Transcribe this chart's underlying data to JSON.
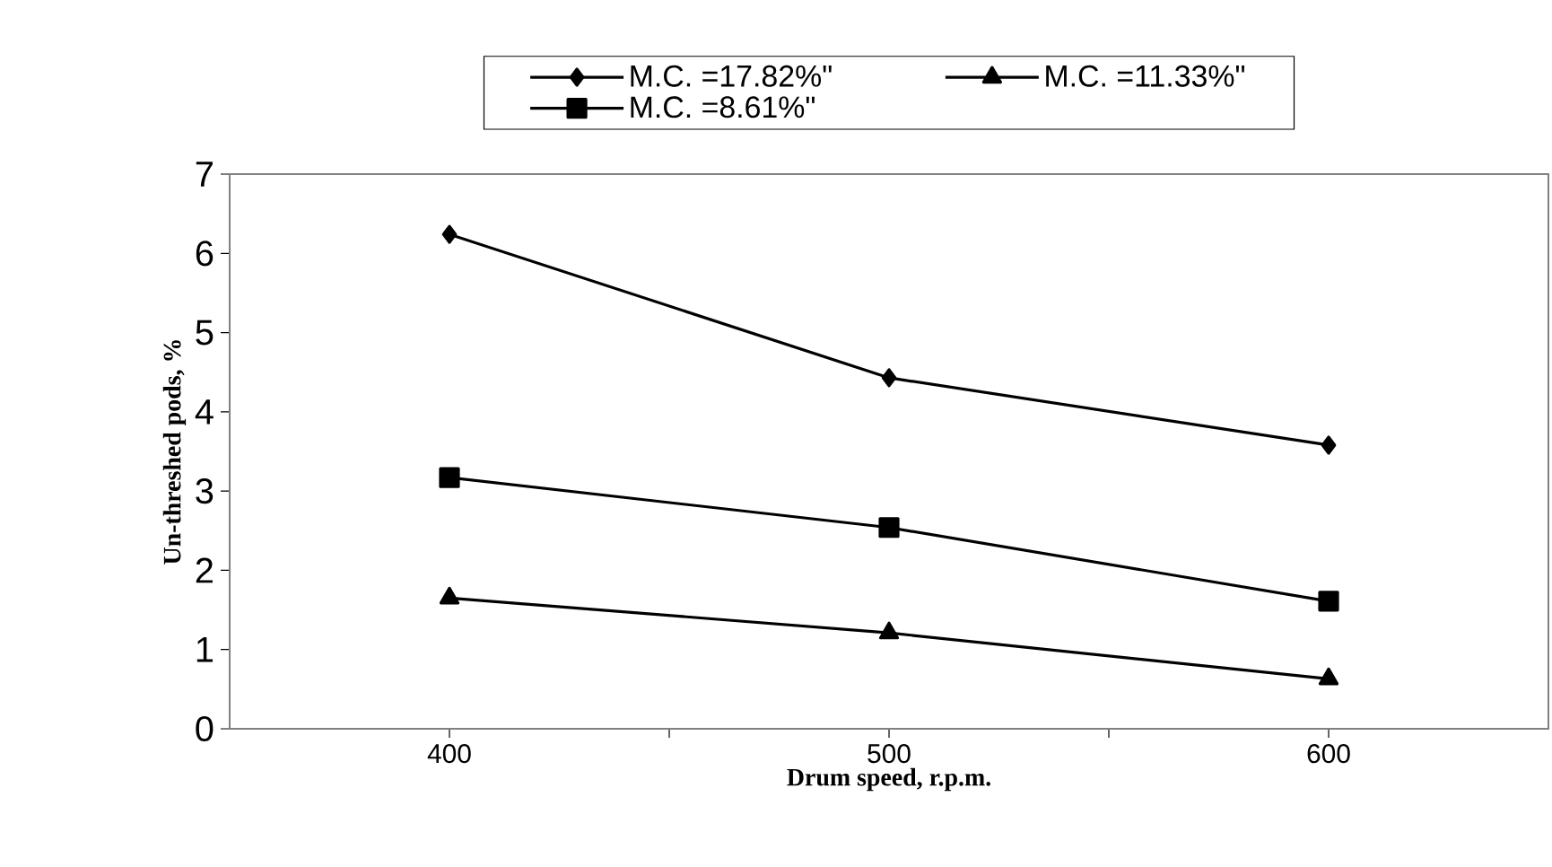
{
  "chart_data": {
    "type": "line",
    "xlabel": "Drum speed, r.p.m.",
    "ylabel": "Un-threshed pods, %",
    "x": [
      400,
      500,
      600
    ],
    "series": [
      {
        "name": "M.C. =17.82%\"",
        "color": "#000000",
        "marker": "diamond",
        "values": [
          6.24,
          4.43,
          3.58
        ]
      },
      {
        "name": "M.C. =11.33%\"",
        "color": "#000000",
        "marker": "triangle",
        "values": [
          1.65,
          1.21,
          0.63
        ]
      },
      {
        "name": "M.C. =8.61%\"",
        "color": "#000000",
        "marker": "square",
        "values": [
          3.17,
          2.54,
          1.61
        ]
      }
    ],
    "xlim": [
      350,
      650
    ],
    "xticks": [
      400,
      {
        "value": 450,
        "label": null
      },
      500,
      {
        "value": 550,
        "label": null
      },
      600
    ],
    "ylim": [
      0,
      7
    ],
    "yticks": [
      0,
      1,
      2,
      3,
      4,
      5,
      6,
      7
    ],
    "grid": false,
    "legend": "top",
    "line_style": "solid"
  }
}
